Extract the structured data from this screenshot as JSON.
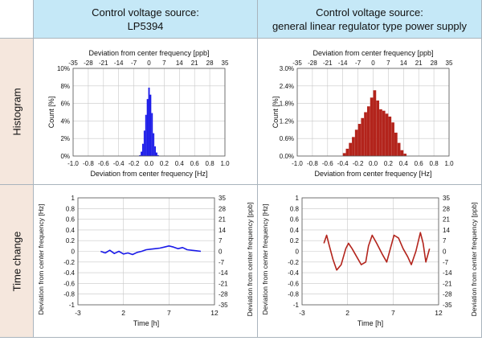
{
  "columns": {
    "left": {
      "line1": "Control voltage source:",
      "line2": "LP5394"
    },
    "right": {
      "line1": "Control voltage source:",
      "line2": "general linear regulator type power supply"
    }
  },
  "rows": {
    "histogram": "Histogram",
    "time_change": "Time change"
  },
  "colors": {
    "header_bg": "#c5e8f7",
    "rowlabel_bg": "#f5e7dd",
    "blue_series": "#1a1ae8",
    "red_series": "#b3241c",
    "grid": "#c8c8c8"
  },
  "chart_data": [
    {
      "id": "hist-left",
      "type": "bar",
      "title": "",
      "xlabel": "Deviation from center frequency [Hz]",
      "x2label": "Deviation from center frequency [ppb]",
      "ylabel": "Count [%]",
      "xlim": [
        -1.0,
        1.0
      ],
      "ylim": [
        0,
        10
      ],
      "x_ticks": [
        "-1.0",
        "-0.8",
        "-0.6",
        "-0.4",
        "-0.2",
        "0.0",
        "0.2",
        "0.4",
        "0.6",
        "0.8",
        "1.0"
      ],
      "x2_ticks": [
        "-35",
        "-28",
        "-21",
        "-14",
        "-7",
        "0",
        "7",
        "14",
        "21",
        "28",
        "35"
      ],
      "y_ticks": [
        "0%",
        "2%",
        "4%",
        "6%",
        "8%",
        "10%"
      ],
      "color": "#1a1ae8",
      "x": [
        -0.12,
        -0.1,
        -0.08,
        -0.06,
        -0.04,
        -0.02,
        0.0,
        0.02,
        0.04,
        0.06,
        0.08,
        0.1,
        0.12
      ],
      "values": [
        0.1,
        0.5,
        1.4,
        2.9,
        4.7,
        6.5,
        7.8,
        7.0,
        4.9,
        2.6,
        1.1,
        0.4,
        0.1
      ]
    },
    {
      "id": "hist-right",
      "type": "bar",
      "title": "",
      "xlabel": "Deviation from center frequency [Hz]",
      "x2label": "Deviation from center frequency [ppb]",
      "ylabel": "Count [%]",
      "xlim": [
        -1.0,
        1.0
      ],
      "ylim": [
        0,
        3.0
      ],
      "x_ticks": [
        "-1.0",
        "-0.8",
        "-0.6",
        "-0.4",
        "-0.2",
        "0.0",
        "0.2",
        "0.4",
        "0.6",
        "0.8",
        "1.0"
      ],
      "x2_ticks": [
        "-35",
        "-28",
        "-21",
        "-14",
        "-7",
        "0",
        "7",
        "14",
        "21",
        "28",
        "35"
      ],
      "y_ticks": [
        "0.0%",
        "0.6%",
        "1.2%",
        "1.8%",
        "2.4%",
        "3.0%"
      ],
      "color": "#b3241c",
      "x": [
        -0.38,
        -0.34,
        -0.3,
        -0.26,
        -0.22,
        -0.18,
        -0.14,
        -0.1,
        -0.06,
        -0.02,
        0.02,
        0.06,
        0.1,
        0.14,
        0.18,
        0.22,
        0.26,
        0.3,
        0.34,
        0.38,
        0.42
      ],
      "values": [
        0.1,
        0.25,
        0.45,
        0.65,
        0.9,
        1.1,
        1.3,
        1.5,
        1.7,
        2.0,
        2.25,
        1.9,
        1.6,
        1.55,
        1.45,
        1.35,
        1.15,
        0.8,
        0.45,
        0.2,
        0.08
      ]
    },
    {
      "id": "time-left",
      "type": "line",
      "title": "",
      "xlabel": "Time [h]",
      "ylabel": "Deviation from center frequency [Hz]",
      "y2label": "Deviation from center frequency [ppb]",
      "xlim": [
        -3,
        12
      ],
      "ylim": [
        -1,
        1
      ],
      "x_ticks": [
        "-3",
        "2",
        "7",
        "12"
      ],
      "y_ticks": [
        "-1",
        "-0.8",
        "-0.6",
        "-0.4",
        "-0.2",
        "0",
        "0.2",
        "0.4",
        "0.6",
        "0.8",
        "1"
      ],
      "y2_ticks": [
        "-35",
        "-28",
        "-21",
        "-14",
        "-7",
        "0",
        "7",
        "14",
        "21",
        "28",
        "35"
      ],
      "color": "#1a1ae8",
      "series": [
        {
          "x": [
            -0.5,
            0,
            0.5,
            1,
            1.5,
            2,
            2.5,
            3,
            3.5,
            4,
            4.5,
            5,
            5.5,
            6,
            6.5,
            7,
            7.5,
            8,
            8.5,
            9,
            9.5,
            10,
            10.5
          ],
          "values": [
            0.0,
            -0.03,
            0.02,
            -0.04,
            0.0,
            -0.05,
            -0.03,
            -0.06,
            -0.02,
            0.0,
            0.03,
            0.04,
            0.05,
            0.06,
            0.08,
            0.1,
            0.08,
            0.05,
            0.07,
            0.03,
            0.02,
            0.01,
            0.0
          ]
        }
      ]
    },
    {
      "id": "time-right",
      "type": "line",
      "title": "",
      "xlabel": "Time [h]",
      "ylabel": "Deviation from center frequency [Hz]",
      "y2label": "Deviation from center frequency [ppb]",
      "xlim": [
        -3,
        12
      ],
      "ylim": [
        -1,
        1
      ],
      "x_ticks": [
        "-3",
        "2",
        "7",
        "12"
      ],
      "y_ticks": [
        "-1",
        "-0.8",
        "-0.6",
        "-0.4",
        "-0.2",
        "0",
        "0.2",
        "0.4",
        "0.6",
        "0.8",
        "1"
      ],
      "y2_ticks": [
        "-35",
        "-28",
        "-21",
        "-14",
        "-7",
        "0",
        "7",
        "14",
        "21",
        "28",
        "35"
      ],
      "color": "#b3241c",
      "series": [
        {
          "x": [
            -0.6,
            -0.3,
            0,
            0.4,
            0.8,
            1.3,
            1.8,
            2.1,
            2.5,
            3.0,
            3.5,
            4.0,
            4.3,
            4.7,
            5.2,
            5.8,
            6.3,
            6.7,
            7.1,
            7.6,
            8.1,
            8.6,
            9.0,
            9.5,
            10.0,
            10.3,
            10.6,
            11.0
          ],
          "values": [
            0.15,
            0.3,
            0.1,
            -0.15,
            -0.35,
            -0.25,
            0.05,
            0.15,
            0.05,
            -0.1,
            -0.25,
            -0.2,
            0.1,
            0.3,
            0.15,
            -0.05,
            -0.2,
            0.05,
            0.3,
            0.25,
            0.05,
            -0.1,
            -0.25,
            0.0,
            0.35,
            0.15,
            -0.2,
            0.05
          ]
        }
      ]
    }
  ]
}
